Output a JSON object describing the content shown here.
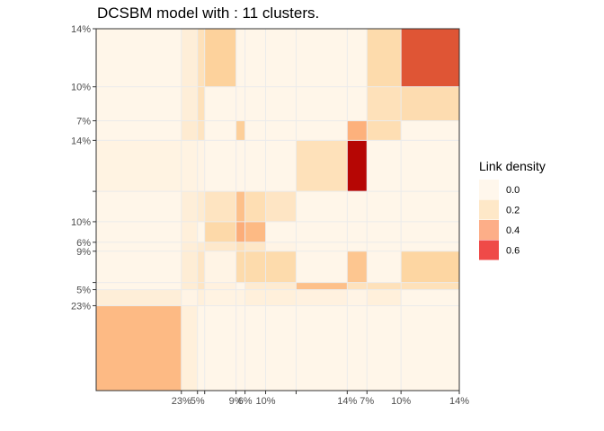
{
  "chart_data": {
    "type": "heatmap",
    "title": "DCSBM model with : 11 clusters.",
    "axis_tick_labels": [
      "23%",
      "5%",
      "9%",
      "6%",
      "10%",
      "14%",
      "7%",
      "10%",
      "14%"
    ],
    "clusters": {
      "x_edges": [
        0.0,
        0.2346,
        0.279,
        0.2988,
        0.3852,
        0.4099,
        0.4667,
        0.5506,
        0.6914,
        0.7457,
        0.8395,
        1.0
      ],
      "y_edges": [
        0.0,
        0.2346,
        0.279,
        0.2988,
        0.3852,
        0.4099,
        0.4667,
        0.5506,
        0.6914,
        0.7457,
        0.8395,
        1.0
      ]
    },
    "colorscale": {
      "domain": [
        0,
        0.7
      ],
      "colors": [
        "#fff7ec",
        "#fdd49e",
        "#fc8d59",
        "#b30000"
      ]
    },
    "legend": {
      "title": "Link density",
      "entries": [
        "0.0",
        "0.2",
        "0.4",
        "0.6"
      ],
      "values": [
        0.0,
        0.2,
        0.4,
        0.6
      ],
      "colors": [
        "#fff7ec",
        "#fee8c8",
        "#fdae88",
        "#ef4a48"
      ]
    },
    "density_matrix": [
      [
        0.32,
        0.05,
        0.01,
        0.01,
        0.01,
        0.01,
        0.01,
        0.01,
        0.01,
        0.01,
        0.01
      ],
      [
        0.06,
        0.02,
        0.05,
        0.03,
        0.03,
        0.05,
        0.05,
        0.04,
        0.02,
        0.05,
        0.01
      ],
      [
        0.01,
        0.07,
        0.12,
        0.04,
        0.01,
        0.08,
        0.08,
        0.3,
        0.14,
        0.15,
        0.15
      ],
      [
        0.01,
        0.07,
        0.12,
        0.02,
        0.19,
        0.19,
        0.19,
        0.01,
        0.28,
        0.01,
        0.22
      ],
      [
        0.01,
        0.06,
        0.08,
        0.1,
        0.15,
        0.11,
        0.02,
        0.01,
        0.01,
        0.01,
        0.01
      ],
      [
        0.01,
        0.05,
        0.01,
        0.2,
        0.36,
        0.32,
        0.01,
        0.01,
        0.01,
        0.01,
        0.01
      ],
      [
        0.01,
        0.06,
        0.08,
        0.13,
        0.3,
        0.17,
        0.12,
        0.01,
        0.01,
        0.01,
        0.01
      ],
      [
        0.03,
        0.03,
        0.02,
        0.01,
        0.01,
        0.01,
        0.01,
        0.15,
        0.69,
        0.01,
        0.01
      ],
      [
        0.01,
        0.08,
        0.13,
        0.01,
        0.25,
        0.01,
        0.01,
        0.01,
        0.35,
        0.17,
        0.01
      ],
      [
        0.01,
        0.06,
        0.15,
        0.01,
        0.01,
        0.01,
        0.01,
        0.01,
        0.01,
        0.15,
        0.18
      ],
      [
        0.01,
        0.06,
        0.15,
        0.24,
        0.01,
        0.01,
        0.01,
        0.01,
        0.01,
        0.19,
        0.56
      ]
    ]
  }
}
